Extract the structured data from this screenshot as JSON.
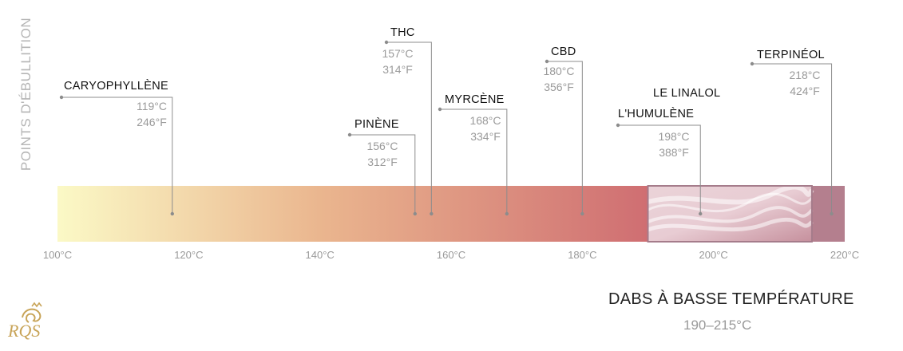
{
  "chart_data": {
    "type": "range-annotation",
    "ylabel": "POINTS D'ÉBULLITION",
    "xlim": [
      100,
      220
    ],
    "x_ticks": [
      {
        "value": 100,
        "label": "100°C"
      },
      {
        "value": 120,
        "label": "120°C"
      },
      {
        "value": 140,
        "label": "140°C"
      },
      {
        "value": 160,
        "label": "160°C"
      },
      {
        "value": 180,
        "label": "180°C"
      },
      {
        "value": 200,
        "label": "200°C"
      },
      {
        "value": 220,
        "label": "220°C"
      }
    ],
    "compounds": [
      {
        "names": [
          "CARYOPHYLLÈNE"
        ],
        "celsius": "119°C",
        "fahrenheit": "246°F",
        "value": 117.5
      },
      {
        "names": [
          "PINÈNE"
        ],
        "celsius": "156°C",
        "fahrenheit": "312°F",
        "value": 154.5
      },
      {
        "names": [
          "THC"
        ],
        "celsius": "157°C",
        "fahrenheit": "314°F",
        "value": 157
      },
      {
        "names": [
          "MYRCÈNE"
        ],
        "celsius": "168°C",
        "fahrenheit": "334°F",
        "value": 168.5
      },
      {
        "names": [
          "CBD"
        ],
        "celsius": "180°C",
        "fahrenheit": "356°F",
        "value": 180
      },
      {
        "names": [
          "LE LINALOL",
          "L'HUMULÈNE"
        ],
        "celsius": "198°C",
        "fahrenheit": "388°F",
        "value": 198
      },
      {
        "names": [
          "TERPINÉOL"
        ],
        "celsius": "218°C",
        "fahrenheit": "424°F",
        "value": 218
      }
    ],
    "highlight": {
      "title": "DABS À BASSE TEMPÉRATURE",
      "range_label": "190–215°C",
      "from": 190,
      "to": 215
    },
    "colors": {
      "start": "#fbf9c6",
      "mid": "#eab58e",
      "end": "#cf6e72",
      "highlight": "#c9a0ad",
      "tail": "#b47f8e"
    }
  },
  "logo": {
    "text": "RQS",
    "color": "#c8a458"
  }
}
